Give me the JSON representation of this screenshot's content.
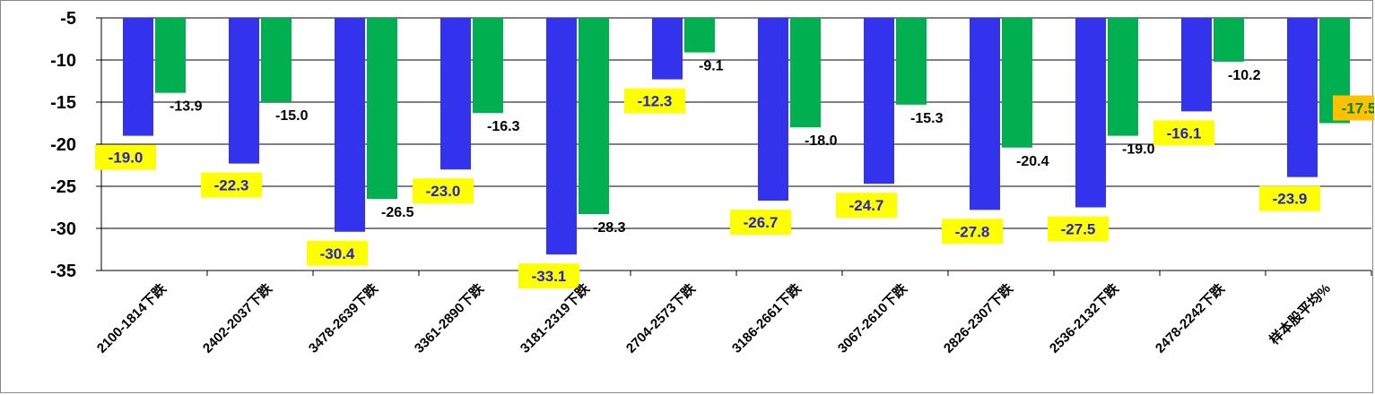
{
  "colors": {
    "series1": "#3333ee",
    "series2": "#00b050",
    "label_bg": "#ffff00",
    "label_bg_highlight": "#ffc000",
    "label_text_series1": "#2222cc",
    "label_text_series2": "#008000"
  },
  "chart_data": {
    "type": "bar",
    "categories": [
      "2100-1814下跌",
      "2402-2037下跌",
      "3478-2639下跌",
      "3361-2890下跌",
      "3181-2319下跌",
      "2704-2573下跌",
      "3186-2661下跌",
      "3067-2610下跌",
      "2826-2307下跌",
      "2536-2132下跌",
      "2478-2242下跌",
      "样本股平均%"
    ],
    "series": [
      {
        "values": [
          -19.0,
          -22.3,
          -30.4,
          -23.0,
          -33.1,
          -12.3,
          -26.7,
          -24.7,
          -27.8,
          -27.5,
          -16.1,
          -23.9
        ],
        "labels": [
          "-19.0",
          "-22.3",
          "-30.4",
          "-23.0",
          "-33.1",
          "-12.3",
          "-26.7",
          "-24.7",
          "-27.8",
          "-27.5",
          "-16.1",
          "-23.9"
        ]
      },
      {
        "values": [
          -13.9,
          -15.0,
          -26.5,
          -16.3,
          -28.3,
          -9.1,
          -18.0,
          -15.3,
          -20.4,
          -19.0,
          -10.2,
          -17.5
        ],
        "labels": [
          "-13.9",
          "-15.0",
          "-26.5",
          "-16.3",
          "-28.3",
          "-9.1",
          "-18.0",
          "-15.3",
          "-20.4",
          "-19.0",
          "-10.2",
          "-17.5"
        ]
      }
    ],
    "yticks": [
      "-5",
      "-10",
      "-15",
      "-20",
      "-25",
      "-30",
      "-35"
    ],
    "ytick_values": [
      -5,
      -10,
      -15,
      -20,
      -25,
      -30,
      -35
    ],
    "ylim": [
      -35,
      -5
    ],
    "grid": true,
    "legend": "none"
  }
}
